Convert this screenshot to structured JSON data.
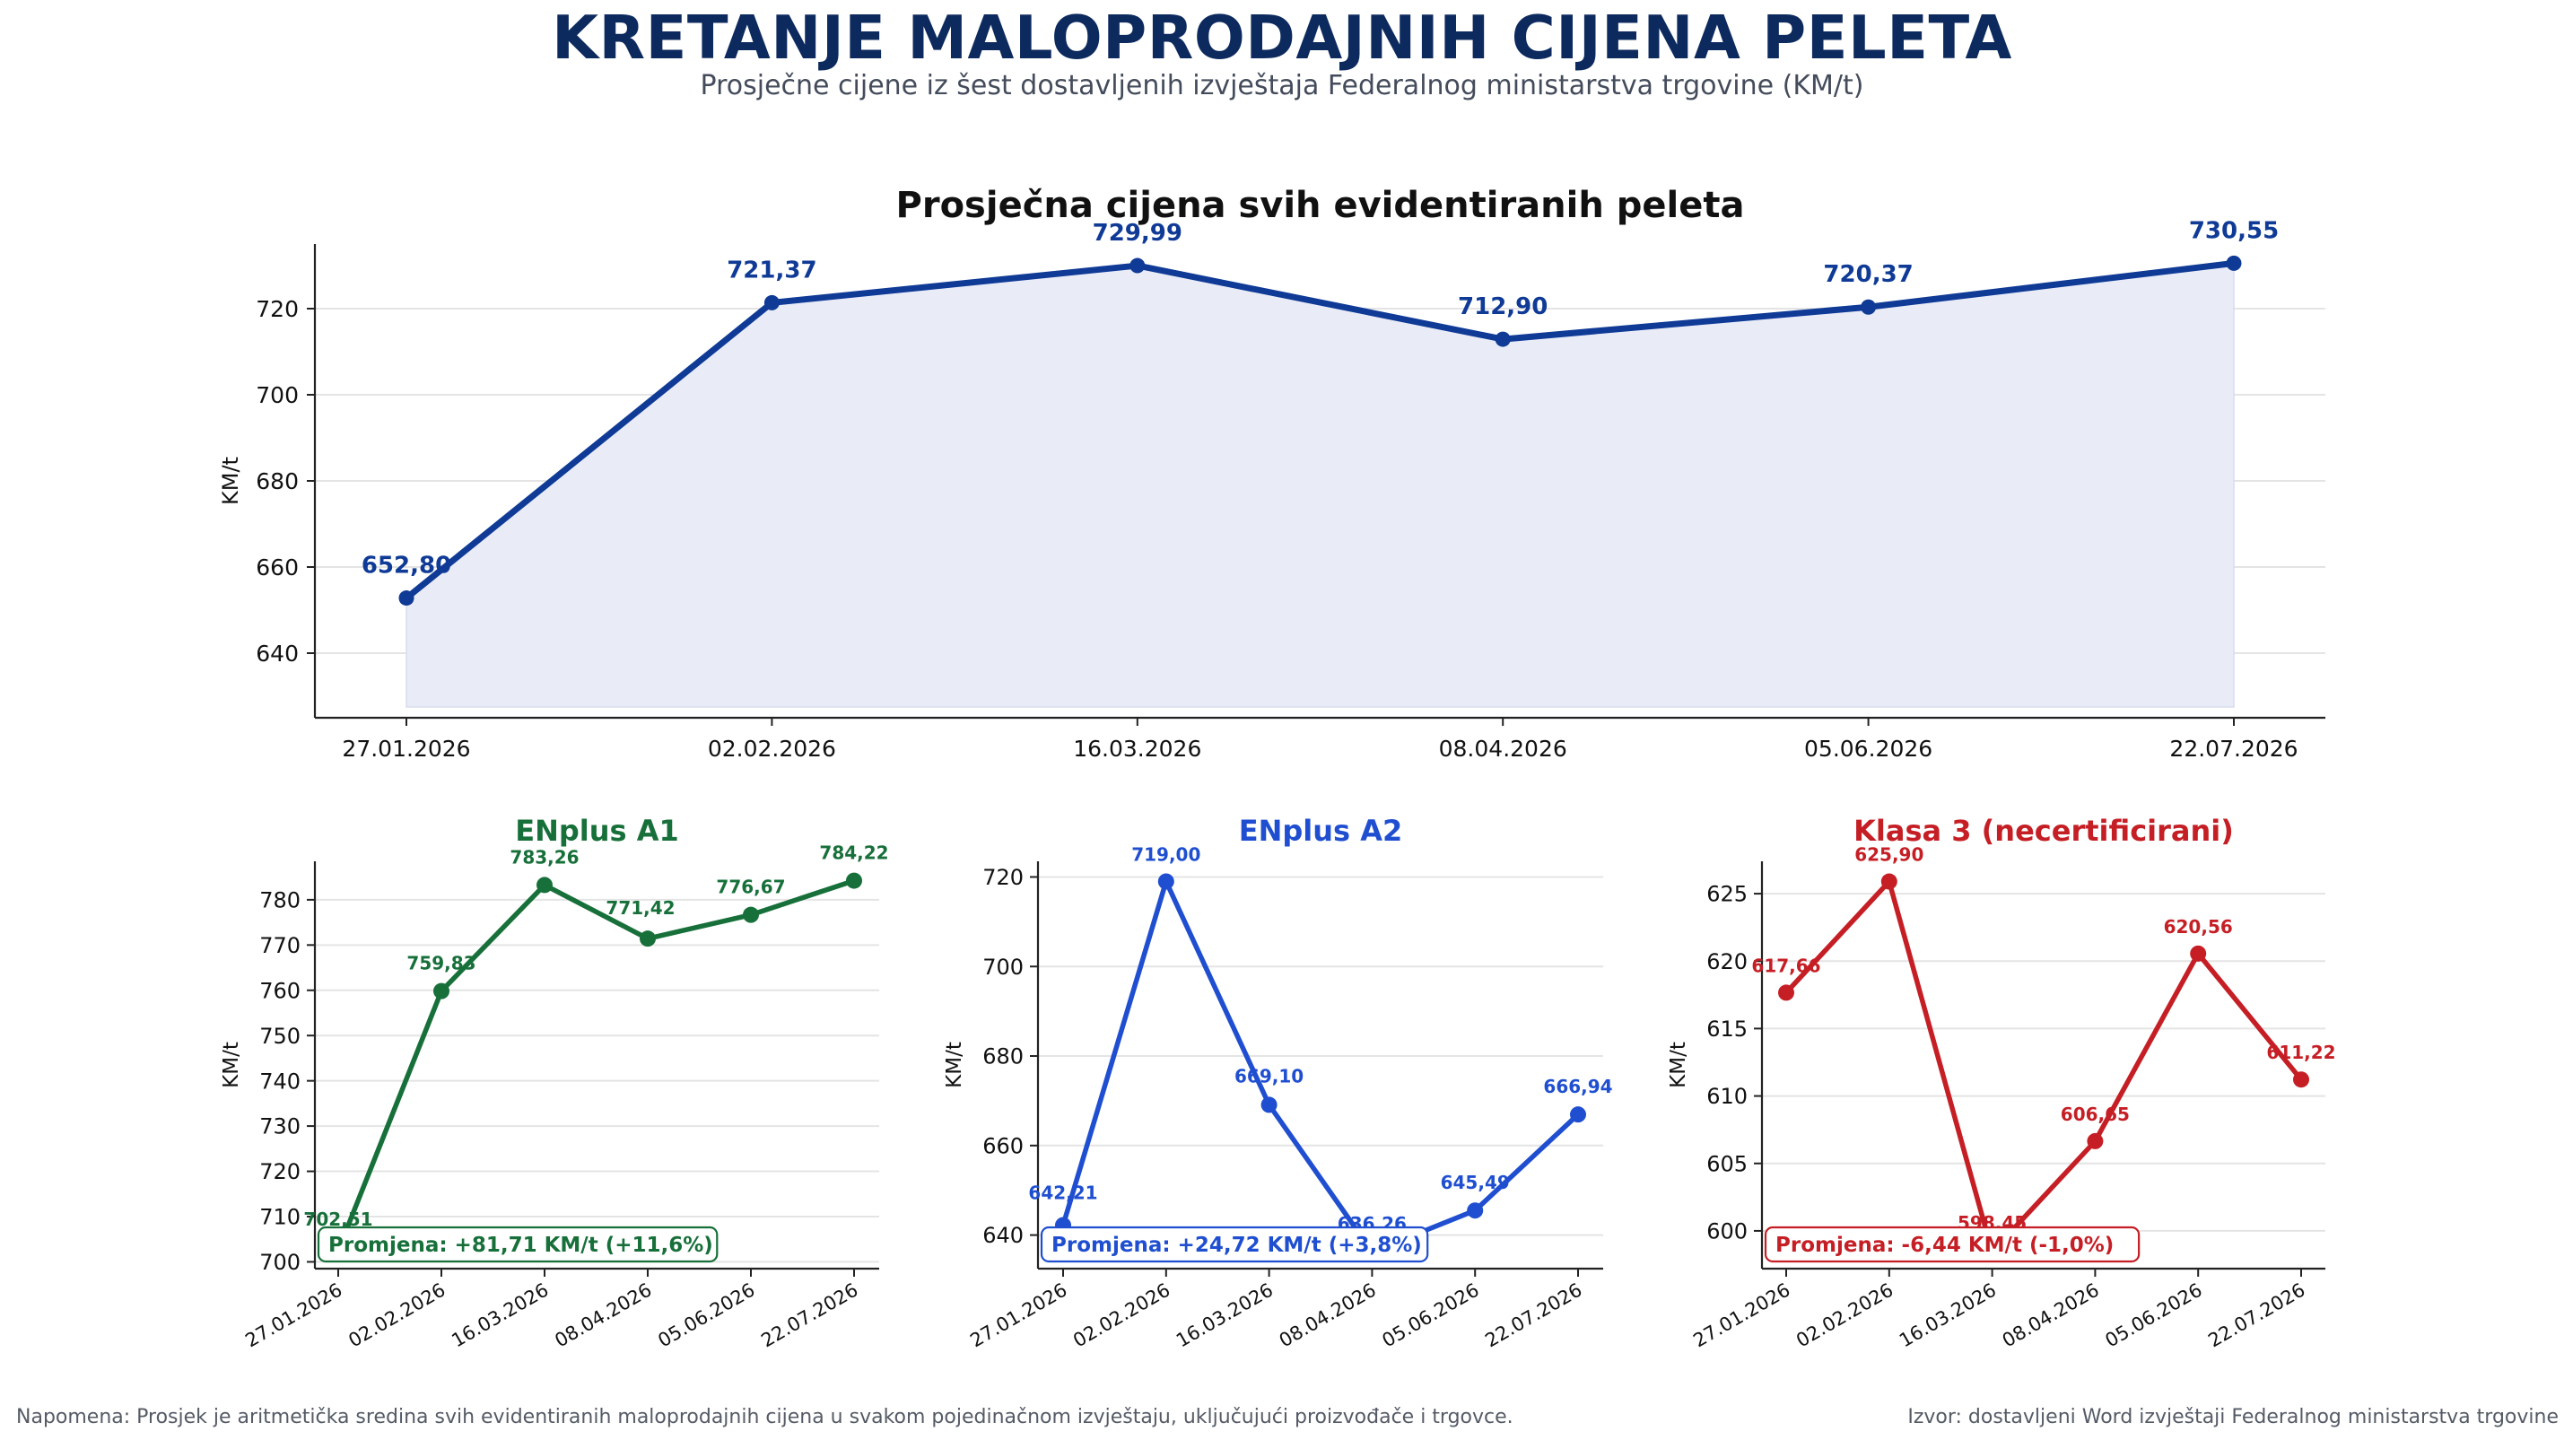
{
  "title": "KRETANJE MALOPRODAJNIH CIJENA PELETA",
  "subtitle": "Prosječne cijene iz šest dostavljenih izvještaja Federalnog ministarstva trgovine (KM/t)",
  "footer": {
    "note": "Napomena: Prosjek je aritmetička sredina svih evidentiranih maloprodajnih cijena u svakom pojedinačnom izvještaju, uključujući proizvođače i trgovce.",
    "source": "Izvor: dostavljeni Word izvještaji Federalnog ministarstva trgovine"
  },
  "chart_data": [
    {
      "type": "area",
      "title": "Prosječna cijena svih evidentiranih peleta",
      "xlabel": "",
      "ylabel": "KM/t",
      "categories": [
        "27.01.2026",
        "02.02.2026",
        "16.03.2026",
        "08.04.2026",
        "05.06.2026",
        "22.07.2026"
      ],
      "values": [
        652.8,
        721.37,
        729.99,
        712.9,
        720.37,
        730.55
      ],
      "labels": [
        "652,80",
        "721,37",
        "729,99",
        "712,90",
        "720,37",
        "730,55"
      ],
      "ylim": [
        625,
        735
      ],
      "yticks": [
        640,
        660,
        680,
        700,
        720
      ],
      "fill_base": 627.5,
      "color": "#0f3a96",
      "fill": "#e9ecf7",
      "grid": true,
      "annotation": ""
    },
    {
      "type": "line",
      "title": "ENplus A1",
      "xlabel": "",
      "ylabel": "KM/t",
      "categories": [
        "27.01.2026",
        "02.02.2026",
        "16.03.2026",
        "08.04.2026",
        "05.06.2026",
        "22.07.2026"
      ],
      "values": [
        702.51,
        759.83,
        783.26,
        771.42,
        776.67,
        784.22
      ],
      "labels": [
        "702,51",
        "759,83",
        "783,26",
        "771,42",
        "776,67",
        "784,22"
      ],
      "ylim": [
        698.5,
        788.5
      ],
      "yticks": [
        700,
        710,
        720,
        730,
        740,
        750,
        760,
        770,
        780
      ],
      "color": "#17703a",
      "grid": true,
      "annotation": "Promjena: +81,71 KM/t (+11,6%)"
    },
    {
      "type": "line",
      "title": "ENplus A2",
      "xlabel": "",
      "ylabel": "KM/t",
      "categories": [
        "27.01.2026",
        "02.02.2026",
        "16.03.2026",
        "08.04.2026",
        "05.06.2026",
        "22.07.2026"
      ],
      "values": [
        642.21,
        719.0,
        669.1,
        636.26,
        645.49,
        666.94
      ],
      "labels": [
        "642,21",
        "719,00",
        "669,10",
        "636,26",
        "645,49",
        "666,94"
      ],
      "ylim": [
        632.5,
        723.5
      ],
      "yticks": [
        640,
        660,
        680,
        700,
        720
      ],
      "color": "#1f4fd0",
      "grid": true,
      "annotation": "Promjena: +24,72 KM/t (+3,8%)"
    },
    {
      "type": "line",
      "title": "Klasa 3 (necertificirani)",
      "xlabel": "",
      "ylabel": "KM/t",
      "categories": [
        "27.01.2026",
        "02.02.2026",
        "16.03.2026",
        "08.04.2026",
        "05.06.2026",
        "22.07.2026"
      ],
      "values": [
        617.66,
        625.9,
        598.45,
        606.65,
        620.56,
        611.22
      ],
      "labels": [
        "617,66",
        "625,90",
        "598,45",
        "606,65",
        "620,56",
        "611,22"
      ],
      "ylim": [
        597.2,
        627.4
      ],
      "yticks": [
        600,
        605,
        610,
        615,
        620,
        625
      ],
      "color": "#c51f25",
      "grid": true,
      "annotation": "Promjena: -6,44 KM/t (-1,0%)"
    }
  ]
}
